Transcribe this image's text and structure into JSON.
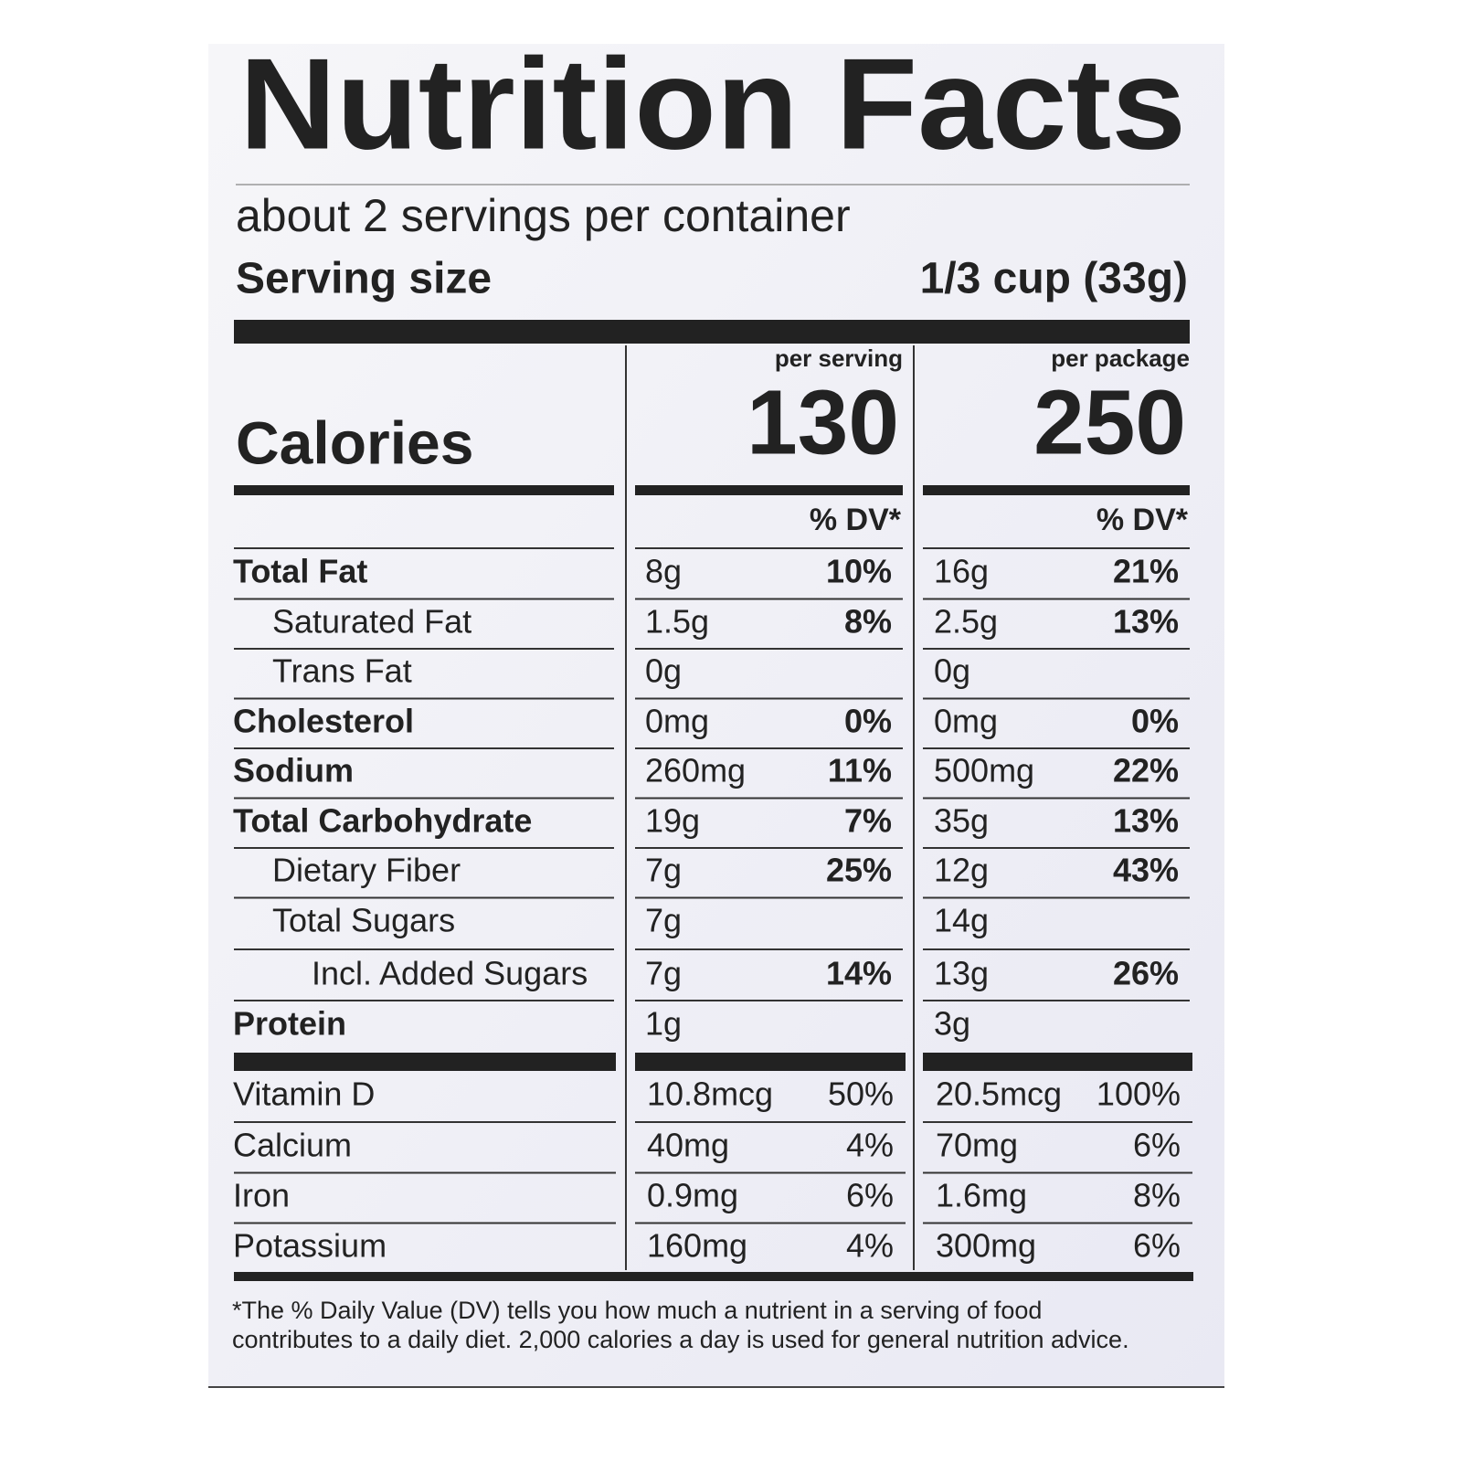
{
  "title": "Nutrition Facts",
  "servings": "about 2 servings per container",
  "serving_size": {
    "label": "Serving size",
    "value": "1/3 cup (33g)"
  },
  "columns": [
    "per serving",
    "per package"
  ],
  "calories": {
    "label": "Calories",
    "values": [
      "130",
      "250"
    ]
  },
  "dv_header": "% DV*",
  "nutrients": [
    {
      "name": "Total Fat",
      "bold": true,
      "indent": 0,
      "serving": {
        "amount": "8g",
        "dv": "10%"
      },
      "package": {
        "amount": "16g",
        "dv": "21%"
      }
    },
    {
      "name": "Saturated Fat",
      "bold": false,
      "indent": 1,
      "serving": {
        "amount": "1.5g",
        "dv": "8%"
      },
      "package": {
        "amount": "2.5g",
        "dv": "13%"
      }
    },
    {
      "name": "Trans Fat",
      "bold": false,
      "indent": 1,
      "serving": {
        "amount": "0g"
      },
      "package": {
        "amount": "0g"
      }
    },
    {
      "name": "Cholesterol",
      "bold": true,
      "indent": 0,
      "serving": {
        "amount": "0mg",
        "dv": "0%"
      },
      "package": {
        "amount": "0mg",
        "dv": "0%"
      }
    },
    {
      "name": "Sodium",
      "bold": true,
      "indent": 0,
      "serving": {
        "amount": "260mg",
        "dv": "11%"
      },
      "package": {
        "amount": "500mg",
        "dv": "22%"
      }
    },
    {
      "name": "Total Carbohydrate",
      "bold": true,
      "indent": 0,
      "serving": {
        "amount": "19g",
        "dv": "7%"
      },
      "package": {
        "amount": "35g",
        "dv": "13%"
      }
    },
    {
      "name": "Dietary Fiber",
      "bold": false,
      "indent": 1,
      "serving": {
        "amount": "7g",
        "dv": "25%"
      },
      "package": {
        "amount": "12g",
        "dv": "43%"
      }
    },
    {
      "name": "Total Sugars",
      "bold": false,
      "indent": 1,
      "serving": {
        "amount": "7g"
      },
      "package": {
        "amount": "14g"
      }
    },
    {
      "name": "Incl. Added Sugars",
      "bold": false,
      "indent": 2,
      "serving": {
        "amount": "7g",
        "dv": "14%"
      },
      "package": {
        "amount": "13g",
        "dv": "26%"
      }
    },
    {
      "name": "Protein",
      "bold": true,
      "indent": 0,
      "serving": {
        "amount": "1g"
      },
      "package": {
        "amount": "3g"
      }
    }
  ],
  "vitamins": [
    {
      "name": "Vitamin D",
      "serving": {
        "amount": "10.8mcg",
        "dv": "50%"
      },
      "package": {
        "amount": "20.5mcg",
        "dv": "100%"
      }
    },
    {
      "name": "Calcium",
      "serving": {
        "amount": "40mg",
        "dv": "4%"
      },
      "package": {
        "amount": "70mg",
        "dv": "6%"
      }
    },
    {
      "name": "Iron",
      "serving": {
        "amount": "0.9mg",
        "dv": "6%"
      },
      "package": {
        "amount": "1.6mg",
        "dv": "8%"
      }
    },
    {
      "name": "Potassium",
      "serving": {
        "amount": "160mg",
        "dv": "4%"
      },
      "package": {
        "amount": "300mg",
        "dv": "6%"
      }
    }
  ],
  "footnote": [
    "*The % Daily Value (DV) tells you how much a nutrient in a serving of food",
    "contributes to a daily diet. 2,000 calories a day is used for general nutrition advice."
  ]
}
